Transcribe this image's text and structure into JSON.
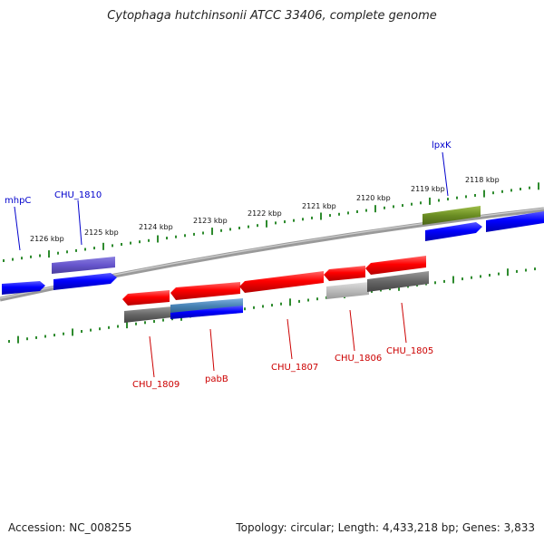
{
  "title": "Cytophaga hutchinsonii ATCC 33406, complete genome",
  "footer": {
    "accession": "Accession: NC_008255",
    "summary": "Topology: circular; Length: 4,433,218 bp; Genes: 3,833"
  },
  "colors": {
    "forward_label": "#0000cc",
    "reverse_label": "#cc0000",
    "tick": "#2e8b2e",
    "backbone": "#888888"
  },
  "scale": {
    "ticks_kbp": [
      "2126 kbp",
      "2125 kbp",
      "2124 kbp",
      "2123 kbp",
      "2122 kbp",
      "2121 kbp",
      "2120 kbp",
      "2119 kbp",
      "2118 kbp"
    ]
  },
  "genes": [
    {
      "label": "mhpC",
      "strand": "+"
    },
    {
      "label": "CHU_1810",
      "strand": "+"
    },
    {
      "label": "lpxK",
      "strand": "+"
    },
    {
      "label": "CHU_1809",
      "strand": "-"
    },
    {
      "label": "pabB",
      "strand": "-"
    },
    {
      "label": "CHU_1807",
      "strand": "-"
    },
    {
      "label": "CHU_1806",
      "strand": "-"
    },
    {
      "label": "CHU_1805",
      "strand": "-"
    }
  ]
}
